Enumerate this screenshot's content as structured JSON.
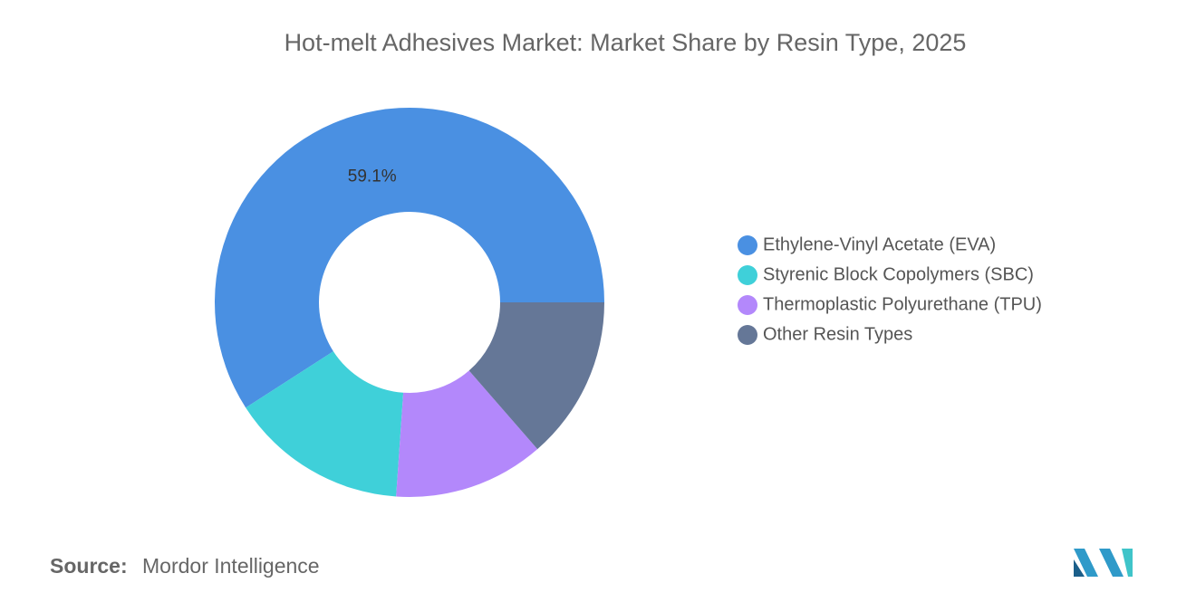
{
  "chart_data": {
    "type": "donut",
    "title": "Hot-melt Adhesives Market: Market Share by Resin Type, 2025",
    "categories": [
      "Ethylene-Vinyl Acetate (EVA)",
      "Styrenic Block Copolymers (SBC)",
      "Thermoplastic Polyurethane (TPU)",
      "Other Resin Types"
    ],
    "values": [
      59.1,
      14.8,
      12.5,
      13.6
    ],
    "value_labels": [
      "59.1%",
      null,
      null,
      null
    ],
    "colors": [
      "#4a90e2",
      "#3fd0d9",
      "#b388fb",
      "#657797"
    ],
    "legend": "right"
  },
  "source": {
    "label": "Source:",
    "text": "Mordor Intelligence"
  }
}
